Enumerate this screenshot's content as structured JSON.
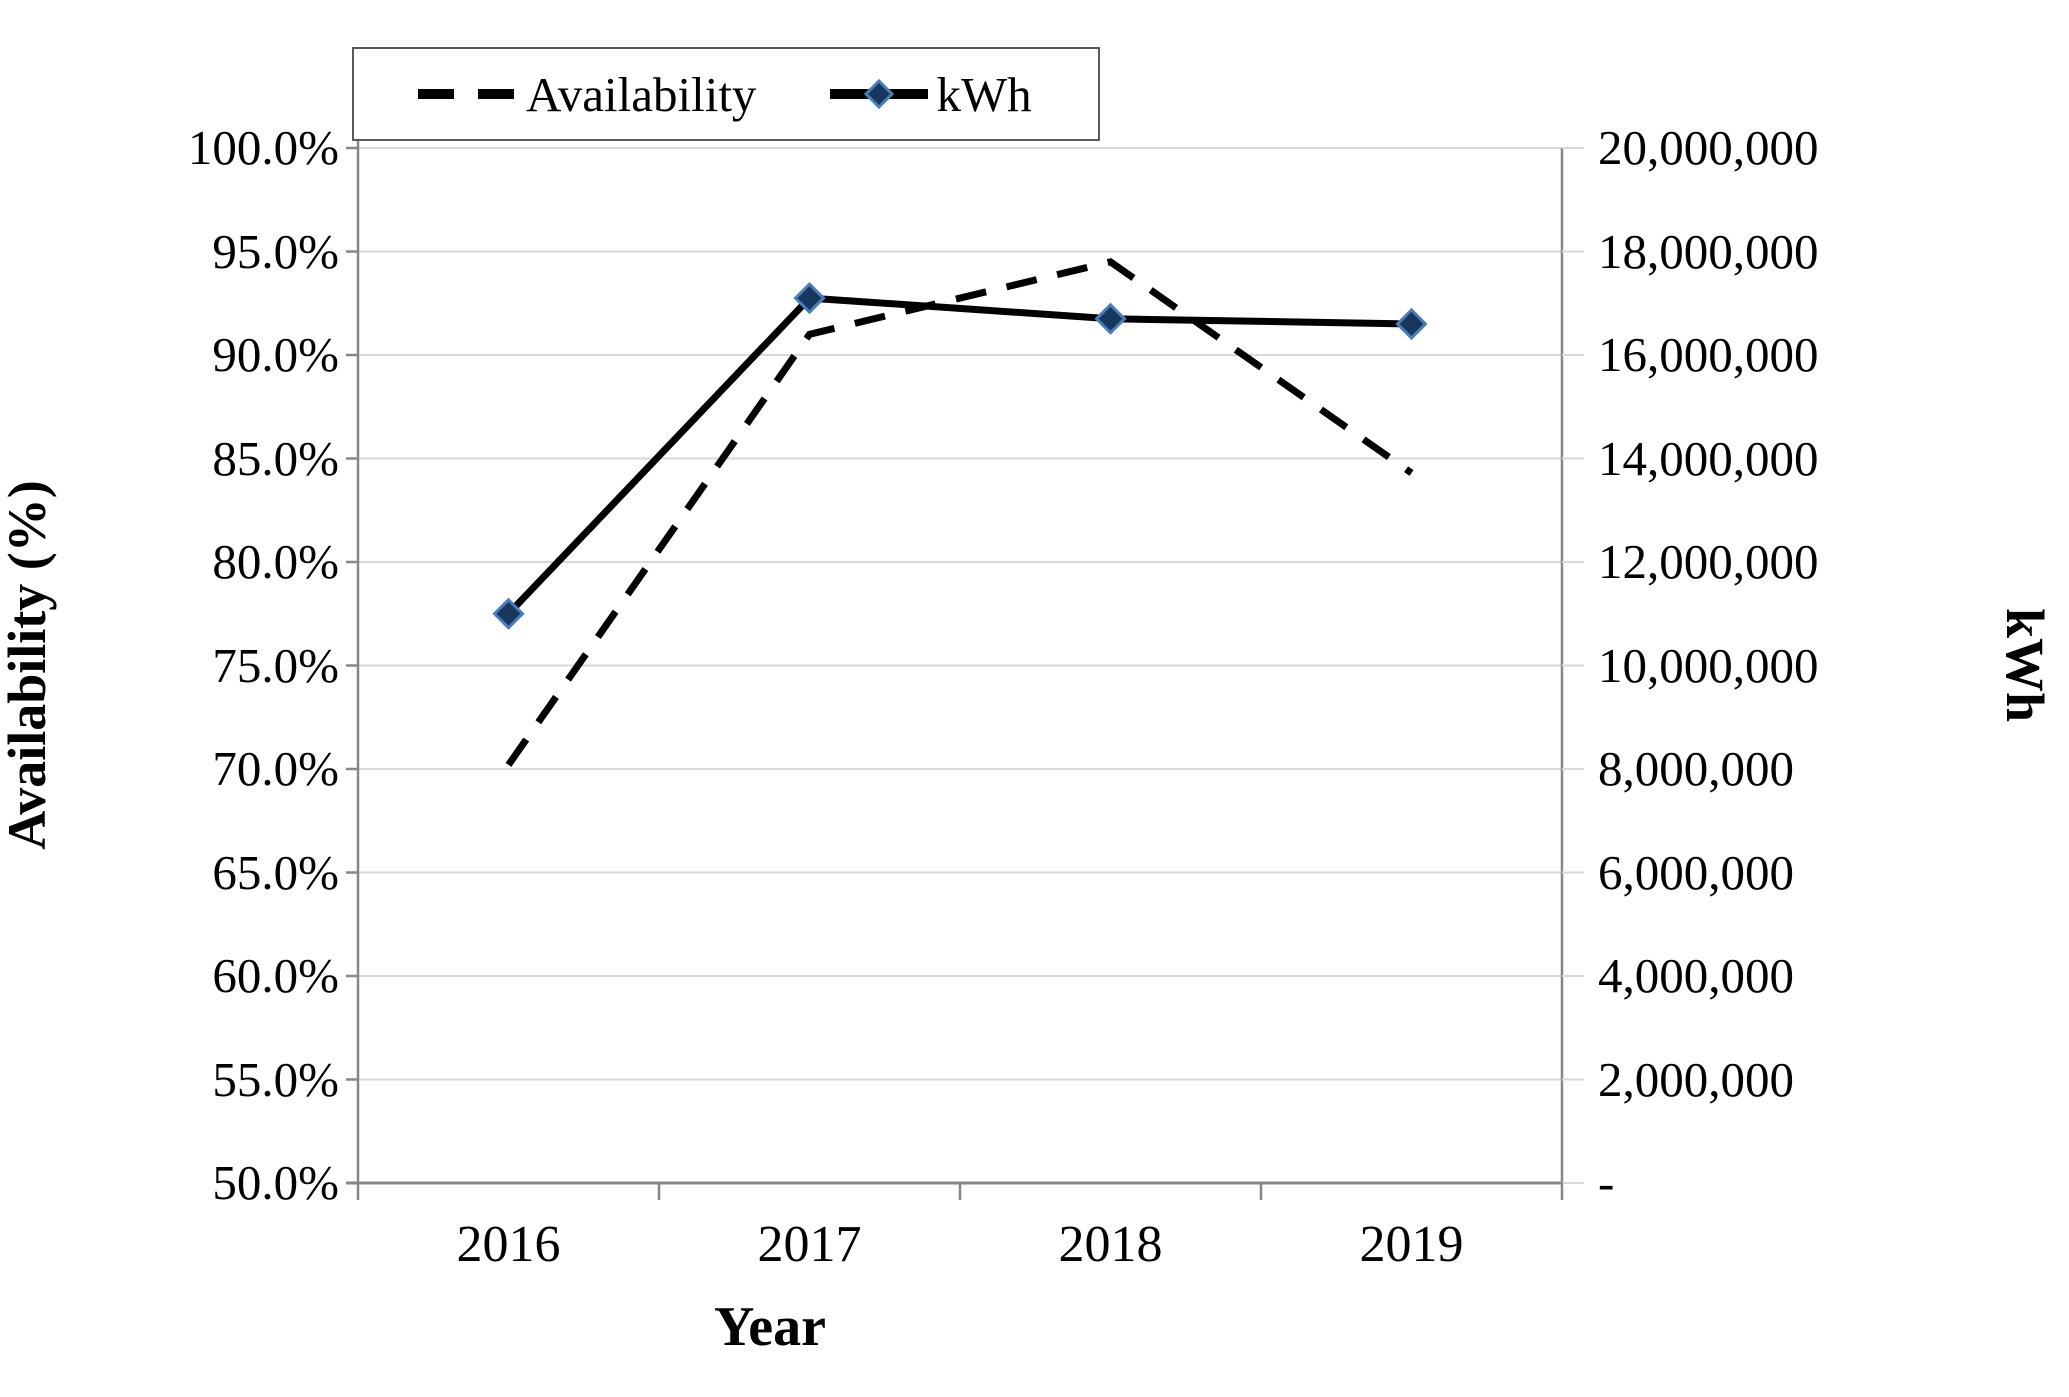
{
  "chart_data": {
    "type": "line",
    "title": "",
    "x": [
      "2016",
      "2017",
      "2018",
      "2019"
    ],
    "xlabel": "Year",
    "series": [
      {
        "name": "Availability",
        "axis": "left",
        "unit": "%",
        "style": "dashed",
        "color": "#000000",
        "marker": "none",
        "values": [
          70.2,
          91.0,
          94.5,
          84.3
        ]
      },
      {
        "name": "kWh",
        "axis": "right",
        "unit": "kWh",
        "style": "solid",
        "color": "#000000",
        "marker": "diamond",
        "marker_fill": "#17375d",
        "marker_stroke": "#4a7ebb",
        "values": [
          11000000,
          17100000,
          16700000,
          16600000
        ]
      }
    ],
    "left_axis": {
      "title": "Availability (%)",
      "min": 50,
      "max": 100,
      "step": 5,
      "tick_labels": [
        "100.0%",
        "95.0%",
        "90.0%",
        "85.0%",
        "80.0%",
        "75.0%",
        "70.0%",
        "65.0%",
        "60.0%",
        "55.0%",
        "50.0%"
      ]
    },
    "right_axis": {
      "title": "kWh",
      "min": 0,
      "max": 20000000,
      "step": 2000000,
      "tick_labels": [
        "20,000,000",
        "18,000,000",
        "16,000,000",
        "14,000,000",
        "12,000,000",
        "10,000,000",
        "8,000,000",
        "6,000,000",
        "4,000,000",
        "2,000,000",
        "-"
      ]
    },
    "legend": {
      "position": "top-left",
      "entries": [
        "Availability",
        "kWh"
      ]
    },
    "grid": "horizontal",
    "colors": {
      "grid": "#d9d9d9",
      "axis": "#878787",
      "text": "#000000"
    }
  }
}
